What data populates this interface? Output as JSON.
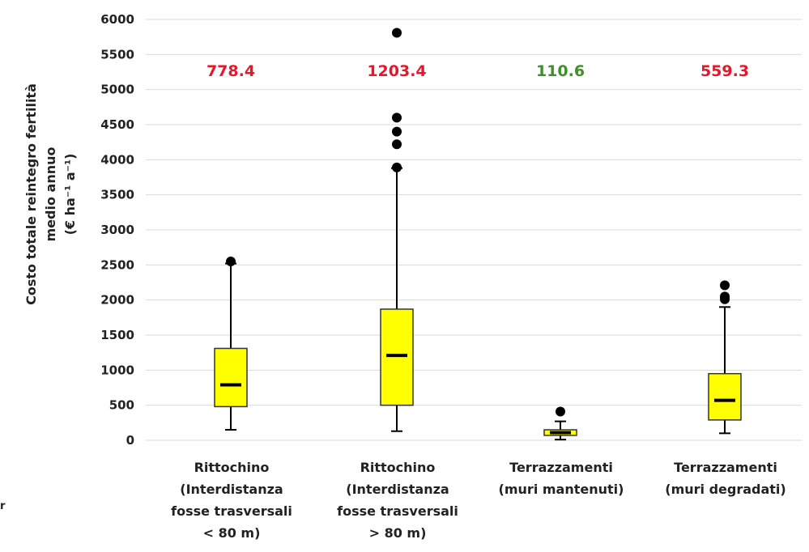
{
  "chart_data": {
    "type": "boxplot",
    "ylabel_lines": [
      "Costo  totale reintegro fertilità",
      "medio annuo",
      "(€ ha⁻¹ a⁻¹)"
    ],
    "ylim": [
      0,
      6000
    ],
    "yticks": [
      0,
      500,
      1000,
      1500,
      2000,
      2500,
      3000,
      3500,
      4000,
      4500,
      5000,
      5500,
      6000
    ],
    "grid": true,
    "box_color": "#ffff00",
    "categories": [
      {
        "label_lines": [
          "Rittochino",
          "(Interdistanza",
          "fosse trasversali",
          "< 80 m)"
        ],
        "min": 150,
        "q1": 480,
        "median": 790,
        "q3": 1310,
        "max": 2520,
        "outliers": [
          2550
        ],
        "mean_label": "778.4",
        "mean_color": "#e8162a"
      },
      {
        "label_lines": [
          "Rittochino",
          "(Interdistanza",
          "fosse trasversali",
          "> 80 m)"
        ],
        "min": 130,
        "q1": 500,
        "median": 1210,
        "q3": 1870,
        "max": 3880,
        "outliers": [
          3890,
          4220,
          4400,
          4600,
          5810
        ],
        "mean_label": "1203.4",
        "mean_color": "#e8162a"
      },
      {
        "label_lines": [
          "Terrazzamenti",
          "(muri mantenuti)"
        ],
        "min": 10,
        "q1": 70,
        "median": 110,
        "q3": 150,
        "max": 270,
        "outliers": [
          410
        ],
        "mean_label": "110.6",
        "mean_color": "#3f8f2b"
      },
      {
        "label_lines": [
          "Terrazzamenti",
          "(muri degradati)"
        ],
        "min": 100,
        "q1": 290,
        "median": 570,
        "q3": 950,
        "max": 1900,
        "outliers": [
          2010,
          2050,
          2210
        ],
        "mean_label": "559.3",
        "mean_color": "#e8162a"
      }
    ]
  },
  "stray_mark": "r"
}
